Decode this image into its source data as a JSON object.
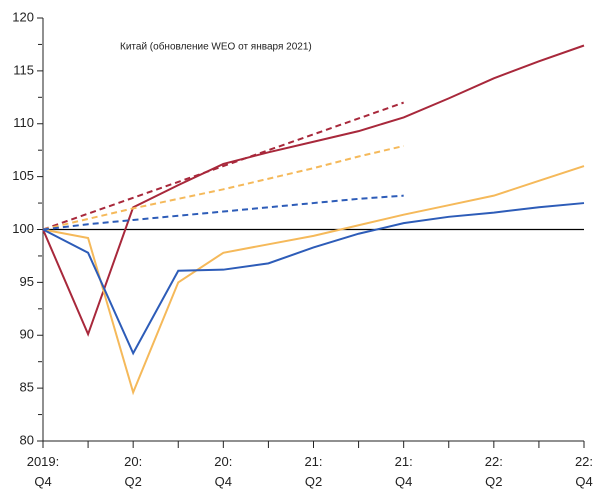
{
  "chart_data": {
    "type": "line",
    "annotation": "Китай (обновление WEO от января 2021)",
    "categories": [
      "2019:\nQ4",
      null,
      "20:\nQ2",
      null,
      "20:\nQ4",
      null,
      "21:\nQ2",
      null,
      "21:\nQ4",
      null,
      "22:\nQ2",
      null,
      "22:\nQ4"
    ],
    "ylim": [
      80,
      120
    ],
    "yticks": [
      80,
      85,
      90,
      95,
      100,
      105,
      110,
      115,
      120
    ],
    "yticks_minor": [
      82.5,
      87.5,
      92.5,
      97.5,
      102.5,
      107.5,
      112.5,
      117.5
    ],
    "reference_line": 100,
    "series": [
      {
        "color": "#a8283b",
        "dashed": false,
        "values": [
          100,
          90.1,
          102.1,
          104.2,
          106.2,
          107.3,
          108.3,
          109.3,
          110.6,
          112.4,
          114.3,
          115.9,
          117.4
        ]
      },
      {
        "color": "#a8283b",
        "dashed": true,
        "values": [
          100,
          101.5,
          103,
          104.5,
          106,
          107.5,
          109,
          110.5,
          112,
          null,
          null,
          null,
          null
        ]
      },
      {
        "color": "#f5b95a",
        "dashed": false,
        "values": [
          100,
          99.2,
          84.6,
          95,
          97.8,
          98.6,
          99.4,
          100.4,
          101.4,
          102.3,
          103.2,
          104.6,
          106.0
        ]
      },
      {
        "color": "#f5b95a",
        "dashed": true,
        "values": [
          100,
          101,
          102,
          102.9,
          103.8,
          104.8,
          105.8,
          106.9,
          107.9,
          null,
          null,
          null,
          null
        ]
      },
      {
        "color": "#2d5cb8",
        "dashed": false,
        "values": [
          100,
          97.8,
          88.3,
          96.1,
          96.2,
          96.8,
          98.3,
          99.6,
          100.6,
          101.2,
          101.6,
          102.1,
          102.5
        ]
      },
      {
        "color": "#2d5cb8",
        "dashed": true,
        "values": [
          100,
          100.5,
          100.9,
          101.3,
          101.7,
          102.1,
          102.5,
          102.9,
          103.2,
          null,
          null,
          null,
          null
        ]
      }
    ]
  }
}
